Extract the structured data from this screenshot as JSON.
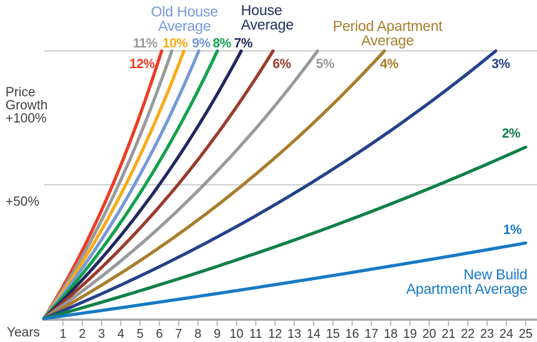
{
  "chart_data": {
    "type": "line",
    "subject": "Compound price growth curves at annual rates 1% to 12%",
    "xlabel": "Years",
    "x_ticks": [
      1,
      2,
      3,
      4,
      5,
      6,
      7,
      8,
      9,
      10,
      11,
      12,
      13,
      14,
      15,
      16,
      17,
      18,
      19,
      20,
      21,
      22,
      23,
      24,
      25
    ],
    "x_range": [
      0,
      25
    ],
    "ylabel_lines": [
      "Price",
      "Growth"
    ],
    "gridlines": [
      {
        "label": "+100%",
        "value": 100
      },
      {
        "label": "+50%",
        "value": 50
      }
    ],
    "y_range": [
      0,
      100
    ],
    "grid": "horizontal lines at +50% and +100% only",
    "legend_position": "labels at line ends",
    "model": "growth(years) = (1 + rate)^years - 1, each curve clipped when it reaches +100%",
    "series": [
      {
        "label": "12%",
        "rate": 0.12,
        "color": "#ed3b24"
      },
      {
        "label": "11%",
        "rate": 0.11,
        "color": "#97999b"
      },
      {
        "label": "10%",
        "rate": 0.1,
        "color": "#f9ab19"
      },
      {
        "label": "9%",
        "rate": 0.09,
        "color": "#7598d8"
      },
      {
        "label": "8%",
        "rate": 0.08,
        "color": "#10a14b"
      },
      {
        "label": "7%",
        "rate": 0.07,
        "color": "#20295e"
      },
      {
        "label": "6%",
        "rate": 0.06,
        "color": "#9a3b2b"
      },
      {
        "label": "5%",
        "rate": 0.05,
        "color": "#97999b"
      },
      {
        "label": "4%",
        "rate": 0.04,
        "color": "#a87c2b"
      },
      {
        "label": "3%",
        "rate": 0.03,
        "color": "#24418c"
      },
      {
        "label": "2%",
        "rate": 0.02,
        "color": "#108045"
      },
      {
        "label": "1%",
        "rate": 0.01,
        "color": "#1779c4"
      }
    ],
    "annotations": [
      {
        "lines": [
          "Old House",
          "Average"
        ],
        "color": "#7598d8",
        "series": "9%"
      },
      {
        "lines": [
          "House",
          "Average"
        ],
        "color": "#20295e",
        "series": "7%"
      },
      {
        "lines": [
          "Period Apartment",
          "Average"
        ],
        "color": "#a87c2b",
        "series": "4%"
      },
      {
        "lines": [
          "New Build",
          "Apartment Average"
        ],
        "color": "#1779c4",
        "series": "1%"
      }
    ]
  }
}
